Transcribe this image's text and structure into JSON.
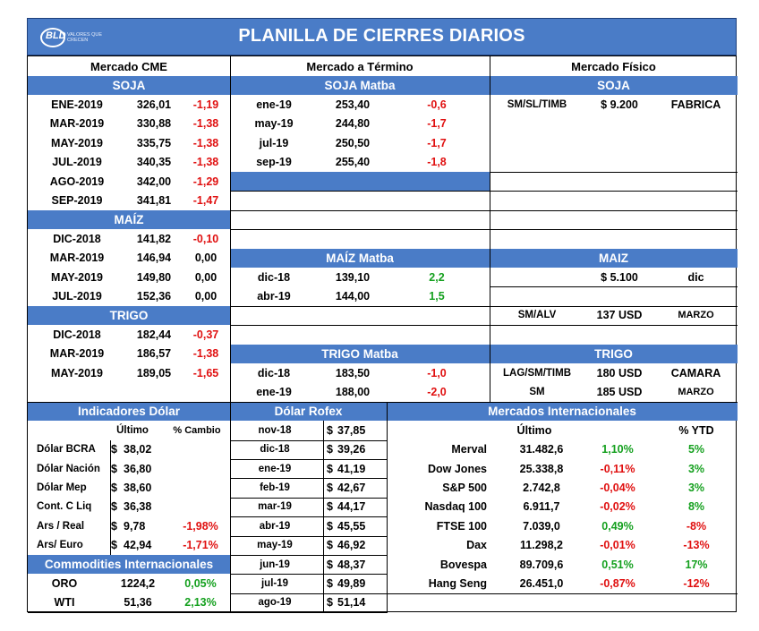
{
  "title": "PLANILLA DE CIERRES DIARIOS",
  "logo": {
    "text": "BLD",
    "tagline": "VALORES QUE CRECEN"
  },
  "colors": {
    "header": "#4a7cc7",
    "negative": "#e01010",
    "positive": "#14a01e"
  },
  "sections": {
    "cme": "Mercado CME",
    "termino": "Mercado a Término",
    "fisico": "Mercado Físico"
  },
  "cme": {
    "soja_header": "SOJA",
    "soja": [
      [
        "ENE-2019",
        "326,01",
        "-1,19"
      ],
      [
        "MAR-2019",
        "330,88",
        "-1,38"
      ],
      [
        "MAY-2019",
        "335,75",
        "-1,38"
      ],
      [
        "JUL-2019",
        "340,35",
        "-1,38"
      ],
      [
        "AGO-2019",
        "342,00",
        "-1,29"
      ],
      [
        "SEP-2019",
        "341,81",
        "-1,47"
      ]
    ],
    "maiz_header": "MAÍZ",
    "maiz": [
      [
        "DIC-2018",
        "141,82",
        "-0,10"
      ],
      [
        "MAR-2019",
        "146,94",
        "0,00"
      ],
      [
        "MAY-2019",
        "149,80",
        "0,00"
      ],
      [
        "JUL-2019",
        "152,36",
        "0,00"
      ]
    ],
    "trigo_header": "TRIGO",
    "trigo": [
      [
        "DIC-2018",
        "182,44",
        "-0,37"
      ],
      [
        "MAR-2019",
        "186,57",
        "-1,38"
      ],
      [
        "MAY-2019",
        "189,05",
        "-1,65"
      ]
    ]
  },
  "termino": {
    "soja_header": "SOJA Matba",
    "soja": [
      [
        "ene-19",
        "253,40",
        "-0,6"
      ],
      [
        "may-19",
        "244,80",
        "-1,7"
      ],
      [
        "jul-19",
        "250,50",
        "-1,7"
      ],
      [
        "sep-19",
        "255,40",
        "-1,8"
      ]
    ],
    "maiz_header": "MAÍZ Matba",
    "maiz": [
      [
        "dic-18",
        "139,10",
        "2,2"
      ],
      [
        "abr-19",
        "144,00",
        "1,5"
      ]
    ],
    "trigo_header": "TRIGO Matba",
    "trigo": [
      [
        "dic-18",
        "183,50",
        "-1,0"
      ],
      [
        "ene-19",
        "188,00",
        "-2,0"
      ]
    ]
  },
  "fisico": {
    "soja_header": "SOJA",
    "soja": [
      [
        "SM/SL/TIMB",
        "$ 9.200",
        "FABRICA"
      ]
    ],
    "maiz_header": "MAIZ",
    "maiz": [
      [
        "",
        "$ 5.100",
        "dic"
      ]
    ],
    "maiz2": [
      "SM/ALV",
      "137 USD",
      "MARZO"
    ],
    "trigo_header": "TRIGO",
    "trigo": [
      [
        "LAG/SM/TIMB",
        "180 USD",
        "CAMARA"
      ],
      [
        "SM",
        "185 USD",
        "MARZO"
      ]
    ]
  },
  "dolar": {
    "header": "Indicadores Dólar",
    "col_last": "Último",
    "col_change": "% Cambio",
    "rows": [
      [
        "Dólar BCRA",
        "$",
        "38,02",
        ""
      ],
      [
        "Dólar Nación",
        "$",
        "36,80",
        ""
      ],
      [
        "Dólar Mep",
        "$",
        "38,60",
        ""
      ],
      [
        "Cont. C Liq",
        "$",
        "36,38",
        ""
      ],
      [
        "Ars / Real",
        "$",
        "9,78",
        "-1,98%"
      ],
      [
        "Ars/ Euro",
        "$",
        "42,94",
        "-1,71%"
      ]
    ]
  },
  "commodities": {
    "header": "Commodities Internacionales",
    "rows": [
      [
        "ORO",
        "1224,2",
        "0,05%"
      ],
      [
        "WTI",
        "51,36",
        "2,13%"
      ]
    ]
  },
  "rofex": {
    "header": "Dólar Rofex",
    "rows": [
      [
        "nov-18",
        "$",
        "37,85"
      ],
      [
        "dic-18",
        "$",
        "39,26"
      ],
      [
        "ene-19",
        "$",
        "41,19"
      ],
      [
        "feb-19",
        "$",
        "42,67"
      ],
      [
        "mar-19",
        "$",
        "44,17"
      ],
      [
        "abr-19",
        "$",
        "45,55"
      ],
      [
        "may-19",
        "$",
        "46,92"
      ],
      [
        "jun-19",
        "$",
        "48,37"
      ],
      [
        "jul-19",
        "$",
        "49,89"
      ],
      [
        "ago-19",
        "$",
        "51,14"
      ]
    ]
  },
  "internacionales": {
    "header": "Mercados Internacionales",
    "col_last": "Último",
    "col_ytd": "% YTD",
    "rows": [
      [
        "Merval",
        "31.482,6",
        "1,10%",
        "5%"
      ],
      [
        "Dow Jones",
        "25.338,8",
        "-0,11%",
        "3%"
      ],
      [
        "S&P 500",
        "2.742,8",
        "-0,04%",
        "3%"
      ],
      [
        "Nasdaq 100",
        "6.911,7",
        "-0,02%",
        "8%"
      ],
      [
        "FTSE 100",
        "7.039,0",
        "0,49%",
        "-8%"
      ],
      [
        "Dax",
        "11.298,2",
        "-0,01%",
        "-13%"
      ],
      [
        "Bovespa",
        "89.709,6",
        "0,51%",
        "17%"
      ],
      [
        "Hang Seng",
        "26.451,0",
        "-0,87%",
        "-12%"
      ]
    ]
  }
}
